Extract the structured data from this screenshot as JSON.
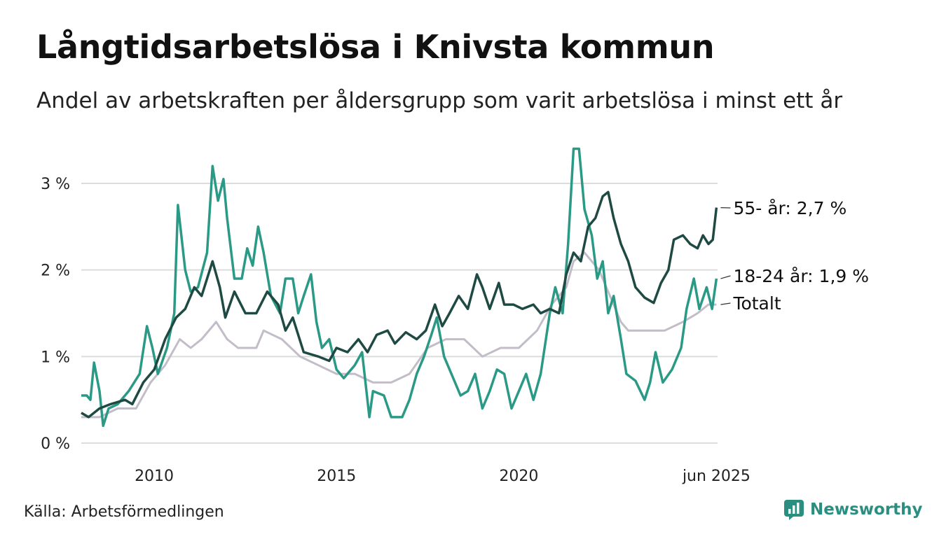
{
  "title": "Långtidsarbetslösa i Knivsta kommun",
  "subtitle": "Andel av arbetskraften per åldersgrupp som varit arbetslösa i minst ett år",
  "source": "Källa: Arbetsförmedlingen",
  "brand": {
    "name": "Newsworthy",
    "icon": "newsworthy-logo-icon",
    "color": "#2a8f80"
  },
  "chart_data": {
    "type": "line",
    "x_unit": "year",
    "xlim": [
      2008.0,
      2025.45
    ],
    "ylim": [
      0,
      3.5
    ],
    "y_ticks": [
      {
        "v": 0,
        "label": "0 %"
      },
      {
        "v": 1,
        "label": "1 %"
      },
      {
        "v": 2,
        "label": "2 %"
      },
      {
        "v": 3,
        "label": "3 %"
      }
    ],
    "x_ticks": [
      {
        "v": 2010,
        "label": "2010"
      },
      {
        "v": 2015,
        "label": "2015"
      },
      {
        "v": 2020,
        "label": "2020"
      },
      {
        "v": 2025.42,
        "label": "jun 2025"
      }
    ],
    "grid": true,
    "series": [
      {
        "name": "Totalt",
        "label": "Totalt",
        "color": "#c2bdc8",
        "points": [
          [
            2008.0,
            0.3
          ],
          [
            2008.5,
            0.3
          ],
          [
            2009.0,
            0.4
          ],
          [
            2009.5,
            0.4
          ],
          [
            2009.9,
            0.7
          ],
          [
            2010.3,
            0.9
          ],
          [
            2010.7,
            1.2
          ],
          [
            2011.0,
            1.1
          ],
          [
            2011.3,
            1.2
          ],
          [
            2011.7,
            1.4
          ],
          [
            2012.0,
            1.2
          ],
          [
            2012.3,
            1.1
          ],
          [
            2012.8,
            1.1
          ],
          [
            2013.0,
            1.3
          ],
          [
            2013.5,
            1.2
          ],
          [
            2014.0,
            1.0
          ],
          [
            2014.5,
            0.9
          ],
          [
            2015.0,
            0.8
          ],
          [
            2015.5,
            0.8
          ],
          [
            2016.0,
            0.7
          ],
          [
            2016.5,
            0.7
          ],
          [
            2017.0,
            0.8
          ],
          [
            2017.5,
            1.1
          ],
          [
            2018.0,
            1.2
          ],
          [
            2018.5,
            1.2
          ],
          [
            2019.0,
            1.0
          ],
          [
            2019.5,
            1.1
          ],
          [
            2020.0,
            1.1
          ],
          [
            2020.5,
            1.3
          ],
          [
            2020.9,
            1.6
          ],
          [
            2021.3,
            1.8
          ],
          [
            2021.5,
            2.1
          ],
          [
            2021.8,
            2.2
          ],
          [
            2022.2,
            2.0
          ],
          [
            2022.5,
            1.7
          ],
          [
            2022.8,
            1.4
          ],
          [
            2023.0,
            1.3
          ],
          [
            2023.5,
            1.3
          ],
          [
            2024.0,
            1.3
          ],
          [
            2024.5,
            1.4
          ],
          [
            2024.9,
            1.5
          ],
          [
            2025.2,
            1.6
          ],
          [
            2025.42,
            1.6
          ]
        ]
      },
      {
        "name": "18-24 år",
        "label": "18-24 år: 1,9 %",
        "color": "#2a9985",
        "points": [
          [
            2008.0,
            0.55
          ],
          [
            2008.15,
            0.55
          ],
          [
            2008.25,
            0.5
          ],
          [
            2008.35,
            0.93
          ],
          [
            2008.5,
            0.6
          ],
          [
            2008.6,
            0.2
          ],
          [
            2008.75,
            0.4
          ],
          [
            2009.0,
            0.45
          ],
          [
            2009.3,
            0.6
          ],
          [
            2009.6,
            0.8
          ],
          [
            2009.8,
            1.35
          ],
          [
            2009.95,
            1.1
          ],
          [
            2010.1,
            0.8
          ],
          [
            2010.35,
            1.1
          ],
          [
            2010.55,
            1.5
          ],
          [
            2010.65,
            2.75
          ],
          [
            2010.85,
            2.0
          ],
          [
            2011.0,
            1.75
          ],
          [
            2011.2,
            1.8
          ],
          [
            2011.45,
            2.2
          ],
          [
            2011.6,
            3.2
          ],
          [
            2011.75,
            2.8
          ],
          [
            2011.9,
            3.05
          ],
          [
            2012.0,
            2.6
          ],
          [
            2012.2,
            1.9
          ],
          [
            2012.4,
            1.9
          ],
          [
            2012.55,
            2.25
          ],
          [
            2012.7,
            2.05
          ],
          [
            2012.85,
            2.5
          ],
          [
            2013.0,
            2.2
          ],
          [
            2013.2,
            1.7
          ],
          [
            2013.45,
            1.5
          ],
          [
            2013.6,
            1.9
          ],
          [
            2013.8,
            1.9
          ],
          [
            2013.95,
            1.5
          ],
          [
            2014.1,
            1.7
          ],
          [
            2014.3,
            1.95
          ],
          [
            2014.45,
            1.4
          ],
          [
            2014.6,
            1.1
          ],
          [
            2014.8,
            1.2
          ],
          [
            2015.0,
            0.85
          ],
          [
            2015.2,
            0.75
          ],
          [
            2015.5,
            0.9
          ],
          [
            2015.7,
            1.05
          ],
          [
            2015.9,
            0.3
          ],
          [
            2016.0,
            0.6
          ],
          [
            2016.3,
            0.55
          ],
          [
            2016.5,
            0.3
          ],
          [
            2016.8,
            0.3
          ],
          [
            2017.0,
            0.5
          ],
          [
            2017.2,
            0.8
          ],
          [
            2017.4,
            1.0
          ],
          [
            2017.6,
            1.25
          ],
          [
            2017.75,
            1.45
          ],
          [
            2017.95,
            1.0
          ],
          [
            2018.2,
            0.75
          ],
          [
            2018.4,
            0.55
          ],
          [
            2018.6,
            0.6
          ],
          [
            2018.8,
            0.8
          ],
          [
            2019.0,
            0.4
          ],
          [
            2019.2,
            0.6
          ],
          [
            2019.4,
            0.85
          ],
          [
            2019.6,
            0.8
          ],
          [
            2019.8,
            0.4
          ],
          [
            2020.0,
            0.6
          ],
          [
            2020.2,
            0.8
          ],
          [
            2020.4,
            0.5
          ],
          [
            2020.6,
            0.8
          ],
          [
            2020.85,
            1.5
          ],
          [
            2021.0,
            1.8
          ],
          [
            2021.2,
            1.5
          ],
          [
            2021.35,
            2.3
          ],
          [
            2021.5,
            3.4
          ],
          [
            2021.65,
            3.4
          ],
          [
            2021.8,
            2.7
          ],
          [
            2022.0,
            2.4
          ],
          [
            2022.15,
            1.9
          ],
          [
            2022.3,
            2.1
          ],
          [
            2022.45,
            1.5
          ],
          [
            2022.6,
            1.7
          ],
          [
            2022.8,
            1.2
          ],
          [
            2022.95,
            0.8
          ],
          [
            2023.2,
            0.72
          ],
          [
            2023.45,
            0.5
          ],
          [
            2023.6,
            0.7
          ],
          [
            2023.75,
            1.05
          ],
          [
            2023.95,
            0.7
          ],
          [
            2024.2,
            0.85
          ],
          [
            2024.45,
            1.1
          ],
          [
            2024.6,
            1.55
          ],
          [
            2024.8,
            1.9
          ],
          [
            2024.95,
            1.55
          ],
          [
            2025.15,
            1.8
          ],
          [
            2025.3,
            1.55
          ],
          [
            2025.42,
            1.9
          ]
        ]
      },
      {
        "name": "55- år",
        "label": "55- år: 2,7 %",
        "color": "#1f4a43",
        "points": [
          [
            2008.0,
            0.35
          ],
          [
            2008.2,
            0.3
          ],
          [
            2008.5,
            0.4
          ],
          [
            2008.8,
            0.45
          ],
          [
            2009.2,
            0.5
          ],
          [
            2009.4,
            0.45
          ],
          [
            2009.7,
            0.7
          ],
          [
            2010.0,
            0.85
          ],
          [
            2010.3,
            1.2
          ],
          [
            2010.6,
            1.45
          ],
          [
            2010.85,
            1.55
          ],
          [
            2011.1,
            1.8
          ],
          [
            2011.3,
            1.7
          ],
          [
            2011.6,
            2.1
          ],
          [
            2011.8,
            1.8
          ],
          [
            2011.95,
            1.45
          ],
          [
            2012.2,
            1.75
          ],
          [
            2012.5,
            1.5
          ],
          [
            2012.8,
            1.5
          ],
          [
            2013.1,
            1.75
          ],
          [
            2013.4,
            1.6
          ],
          [
            2013.6,
            1.3
          ],
          [
            2013.8,
            1.45
          ],
          [
            2014.1,
            1.05
          ],
          [
            2014.5,
            1.0
          ],
          [
            2014.8,
            0.95
          ],
          [
            2015.0,
            1.1
          ],
          [
            2015.3,
            1.05
          ],
          [
            2015.6,
            1.2
          ],
          [
            2015.85,
            1.05
          ],
          [
            2016.1,
            1.25
          ],
          [
            2016.4,
            1.3
          ],
          [
            2016.6,
            1.15
          ],
          [
            2016.9,
            1.28
          ],
          [
            2017.2,
            1.2
          ],
          [
            2017.45,
            1.3
          ],
          [
            2017.7,
            1.6
          ],
          [
            2017.9,
            1.35
          ],
          [
            2018.1,
            1.5
          ],
          [
            2018.35,
            1.7
          ],
          [
            2018.6,
            1.55
          ],
          [
            2018.85,
            1.95
          ],
          [
            2019.0,
            1.8
          ],
          [
            2019.2,
            1.55
          ],
          [
            2019.45,
            1.85
          ],
          [
            2019.6,
            1.6
          ],
          [
            2019.85,
            1.6
          ],
          [
            2020.1,
            1.55
          ],
          [
            2020.4,
            1.6
          ],
          [
            2020.6,
            1.5
          ],
          [
            2020.85,
            1.55
          ],
          [
            2021.1,
            1.5
          ],
          [
            2021.3,
            1.95
          ],
          [
            2021.5,
            2.2
          ],
          [
            2021.7,
            2.1
          ],
          [
            2021.9,
            2.5
          ],
          [
            2022.1,
            2.6
          ],
          [
            2022.3,
            2.85
          ],
          [
            2022.45,
            2.9
          ],
          [
            2022.6,
            2.6
          ],
          [
            2022.8,
            2.3
          ],
          [
            2023.0,
            2.1
          ],
          [
            2023.2,
            1.8
          ],
          [
            2023.45,
            1.68
          ],
          [
            2023.7,
            1.62
          ],
          [
            2023.9,
            1.85
          ],
          [
            2024.1,
            2.0
          ],
          [
            2024.25,
            2.35
          ],
          [
            2024.5,
            2.4
          ],
          [
            2024.7,
            2.3
          ],
          [
            2024.9,
            2.25
          ],
          [
            2025.05,
            2.4
          ],
          [
            2025.2,
            2.3
          ],
          [
            2025.32,
            2.35
          ],
          [
            2025.42,
            2.72
          ]
        ]
      }
    ]
  }
}
